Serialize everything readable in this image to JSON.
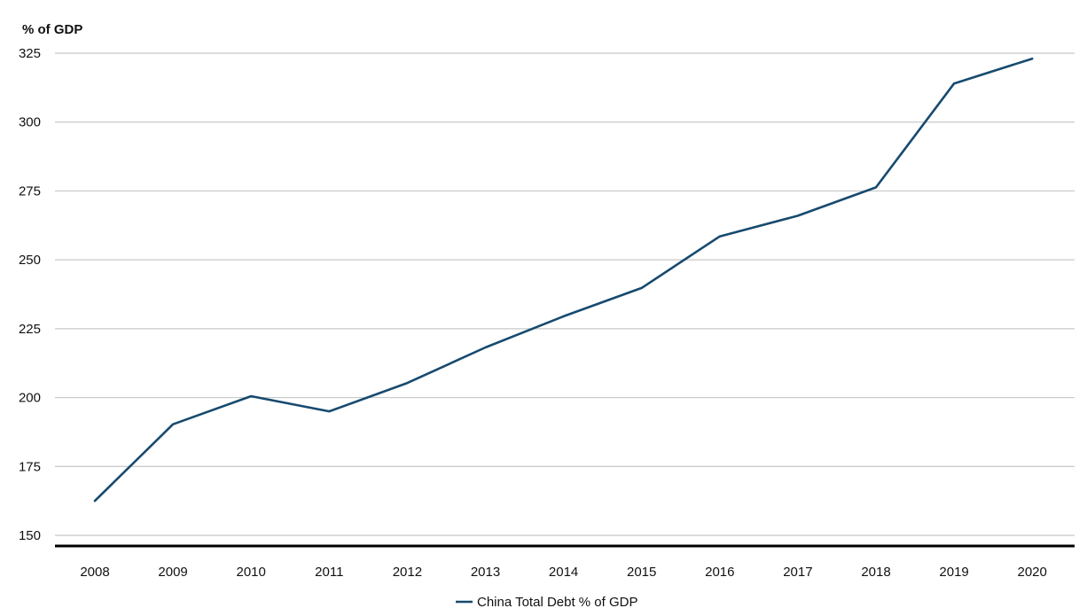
{
  "chart_data": {
    "type": "line",
    "ylabel": "% of GDP",
    "ylim": [
      150,
      325
    ],
    "yticks": [
      150,
      175,
      200,
      225,
      250,
      275,
      300,
      325
    ],
    "categories": [
      "2008",
      "2009",
      "2010",
      "2011",
      "2012",
      "2013",
      "2014",
      "2015",
      "2016",
      "2017",
      "2018",
      "2019",
      "2020"
    ],
    "series": [
      {
        "name": "China Total Debt % of GDP",
        "color": "#174a6f",
        "values": [
          162.5,
          190.3,
          200.5,
          195,
          205.3,
          218.2,
          229.5,
          239.8,
          258.5,
          266,
          276.3,
          314,
          323
        ]
      }
    ],
    "grid": true,
    "legend_position": "bottom-center"
  }
}
